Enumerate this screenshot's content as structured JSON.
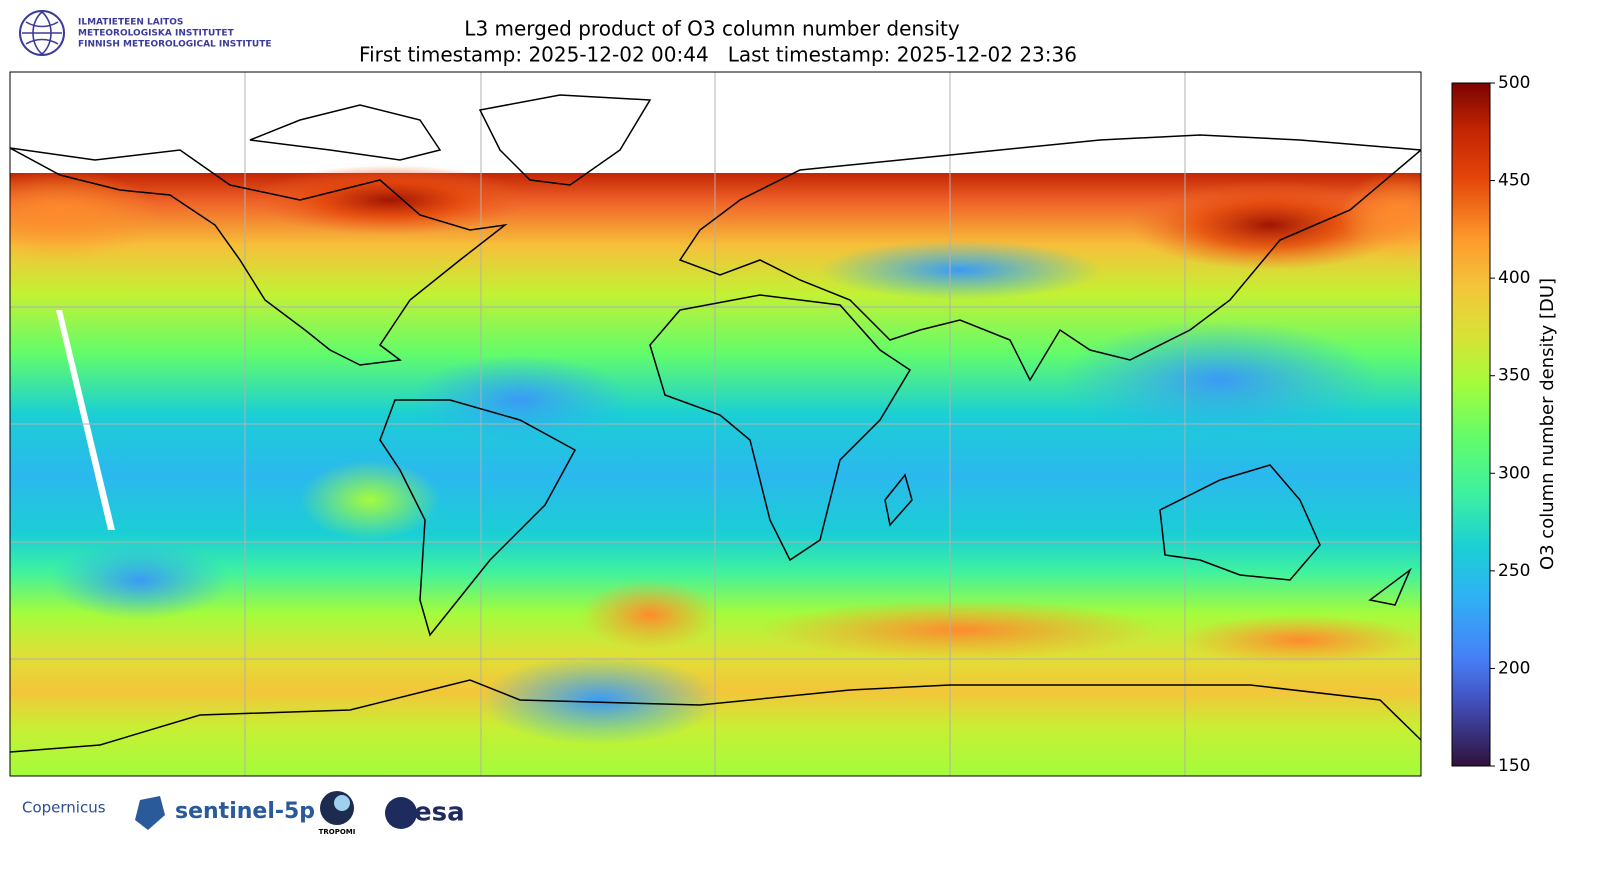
{
  "header": {
    "logo_lines": [
      "ILMATIETEEN LAITOS",
      "METEOROLOGISKA INSTITUTET",
      "FINNISH METEOROLOGICAL INSTITUTE"
    ]
  },
  "chart_data": {
    "type": "map",
    "title": "L3 merged product of O3 column number density",
    "subtitle": "First timestamp: 2025-12-02 00:44   Last timestamp: 2025-12-02 23:36",
    "colorbar": {
      "label": "O3 column number density [DU]",
      "lim": [
        150,
        500
      ],
      "ticks": [
        150,
        200,
        250,
        300,
        350,
        400,
        450,
        500
      ]
    }
  },
  "footer": {
    "logos": [
      "Copernicus",
      "sentinel-5p",
      "TROPOMI",
      "esa"
    ]
  }
}
